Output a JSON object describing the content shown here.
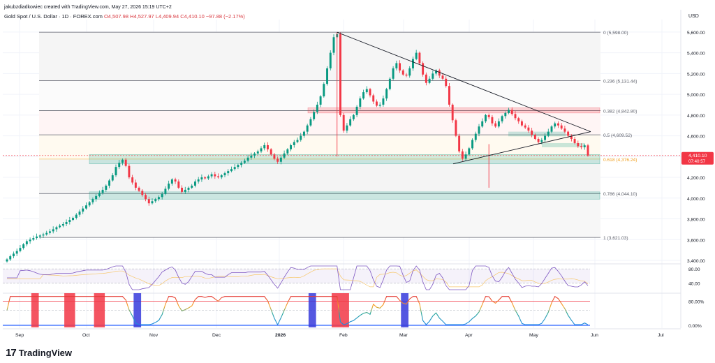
{
  "header": {
    "author_line": "jakubzdiadkowiec created with TradingView.com, May 27, 2026 15:19 UTC+2",
    "symbol": "Gold Spot / U.S. Dollar · 1D · FOREX.com",
    "ohlc": "O4,507.98 H4,527.97 L4,409.94 C4,410.10 −97.88 (−2.17%)"
  },
  "currency": "USD",
  "brand": {
    "logo": "17",
    "name": "TradingView"
  },
  "colors": {
    "up": "#089981",
    "down": "#f23645",
    "grid": "#f0f3fa",
    "axis_text": "#131722"
  },
  "chart_data": {
    "type": "candlestick",
    "symbol": "XAUUSD",
    "timeframe": "1D",
    "x_months": [
      "Sep",
      "Oct",
      "Nov",
      "Dec",
      "2026",
      "Feb",
      "Mar",
      "Apr",
      "May",
      "Jun",
      "Jul"
    ],
    "y_ticks": [
      "5,600.00",
      "5,400.00",
      "5,200.00",
      "5,000.00",
      "4,800.00",
      "4,600.00",
      "4,400.00",
      "4,200.00",
      "4,000.00",
      "3,800.00",
      "3,600.00",
      "3,400.00"
    ],
    "y_tick_values": [
      5600,
      5400,
      5200,
      5000,
      4800,
      4600,
      4400,
      4200,
      4000,
      3800,
      3600,
      3400
    ],
    "ylim": [
      3380,
      5720
    ],
    "last_price": {
      "value": 4410.1,
      "label": "4,410.10",
      "countdown": "07:40:57"
    },
    "fib_levels": [
      {
        "ratio": 0,
        "price": 5598.0,
        "label": "0 (5,598.00)"
      },
      {
        "ratio": 0.236,
        "price": 5131.44,
        "label": "0.236 (5,131.44)"
      },
      {
        "ratio": 0.382,
        "price": 4842.8,
        "label": "0.382 (4,842.80)"
      },
      {
        "ratio": 0.5,
        "price": 4609.52,
        "label": "0.5 (4,609.52)"
      },
      {
        "ratio": 0.618,
        "price": 4376.24,
        "label": "0.618 (4,376.24)"
      },
      {
        "ratio": 0.786,
        "price": 4044.1,
        "label": "0.786 (4,044.10)"
      },
      {
        "ratio": 1,
        "price": 3621.03,
        "label": "1 (3,621.03)"
      }
    ],
    "closes": [
      3410,
      3440,
      3465,
      3490,
      3520,
      3555,
      3585,
      3600,
      3615,
      3630,
      3640,
      3650,
      3665,
      3680,
      3700,
      3720,
      3735,
      3750,
      3770,
      3790,
      3810,
      3840,
      3870,
      3900,
      3930,
      3960,
      3990,
      4020,
      4050,
      4080,
      4120,
      4170,
      4220,
      4300,
      4340,
      4370,
      4310,
      4200,
      4150,
      4100,
      4070,
      4030,
      3990,
      3950,
      3970,
      3990,
      4010,
      4040,
      4090,
      4140,
      4180,
      4160,
      4100,
      4060,
      4080,
      4100,
      4120,
      4160,
      4180,
      4200,
      4190,
      4210,
      4230,
      4210,
      4200,
      4220,
      4240,
      4260,
      4280,
      4300,
      4320,
      4340,
      4360,
      4390,
      4410,
      4430,
      4450,
      4480,
      4510,
      4470,
      4420,
      4380,
      4350,
      4390,
      4430,
      4470,
      4510,
      4540,
      4560,
      4600,
      4640,
      4700,
      4760,
      4830,
      4900,
      4980,
      5100,
      5250,
      5400,
      5550,
      5580,
      4800,
      4650,
      4700,
      4760,
      4800,
      4880,
      4960,
      5020,
      5050,
      4990,
      4930,
      4890,
      4900,
      4960,
      5050,
      5150,
      5250,
      5300,
      5230,
      5190,
      5180,
      5250,
      5340,
      5400,
      5300,
      5190,
      5110,
      5150,
      5200,
      5230,
      5180,
      5150,
      5080,
      4900,
      4750,
      4600,
      4450,
      4380,
      4420,
      4480,
      4560,
      4620,
      4690,
      4740,
      4800,
      4780,
      4720,
      4690,
      4740,
      4790,
      4820,
      4850,
      4810,
      4770,
      4740,
      4700,
      4680,
      4650,
      4610,
      4570,
      4540,
      4560,
      4600,
      4640,
      4690,
      4720,
      4700,
      4670,
      4640,
      4600,
      4570,
      4530,
      4500,
      4490,
      4508,
      4410
    ],
    "rsi": {
      "levels": [
        80,
        40
      ],
      "tick_labels": [
        "80.00",
        "40.00"
      ]
    },
    "stoch": {
      "levels": [
        80,
        50,
        0
      ],
      "tick_labels": [
        "80.00%",
        "0.00%"
      ],
      "high_zones": [
        [
          8,
          9
        ],
        [
          18,
          20
        ],
        [
          27,
          29
        ],
        [
          99,
          103
        ]
      ],
      "low_zones": [
        [
          39,
          40
        ],
        [
          92,
          93
        ],
        [
          120,
          121
        ]
      ]
    }
  }
}
